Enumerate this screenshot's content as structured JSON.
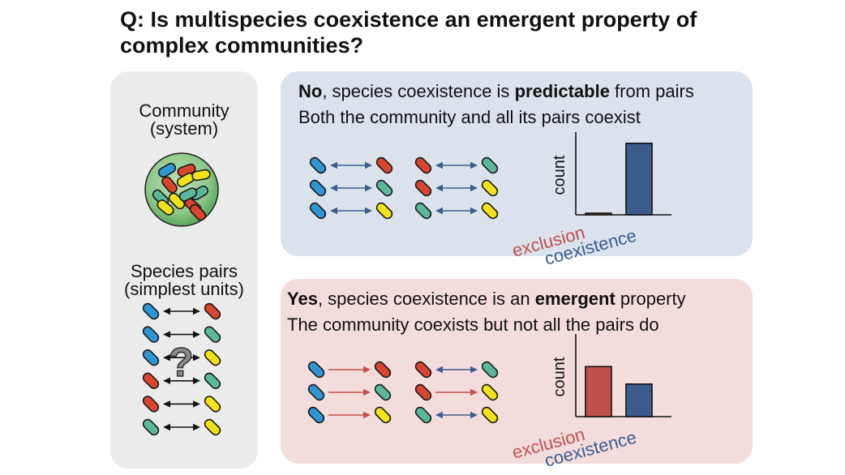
{
  "title": {
    "line1": "Q: Is multispecies coexistence an emergent property of",
    "line2": "complex communities?"
  },
  "left_panel": {
    "community_label_1": "Community",
    "community_label_2": "(system)",
    "pairs_label_1": "Species pairs",
    "pairs_label_2": "(simplest units)",
    "question_mark": "?"
  },
  "no_box": {
    "keyword": "No",
    "line1_mid": ", species coexistence is ",
    "emphasis": "predictable",
    "line1_end": " from pairs",
    "line2": "Both the community and all its pairs coexist"
  },
  "yes_box": {
    "keyword": "Yes",
    "line1_mid": ", species coexistence is an ",
    "emphasis": "emergent",
    "line1_end": " property",
    "line2": "The community coexists but not all the pairs do"
  },
  "colors": {
    "blue_species": "#2e97d3",
    "red_species": "#d9452e",
    "green_species": "#5ab89a",
    "yellow_species": "#f1e21a",
    "coexistence": "#3b5c8d",
    "exclusion": "#c0504d",
    "no_box_bg": "#dbe2ec",
    "yes_box_bg": "#f3dcdc",
    "left_panel_bg": "#ebebeb"
  },
  "chart_data": [
    {
      "type": "bar",
      "categories": [
        "exclusion",
        "coexistence"
      ],
      "values": [
        2,
        90
      ],
      "xlabel": "",
      "ylabel": "count",
      "ylim": [
        0,
        100
      ],
      "grid": false
    },
    {
      "type": "bar",
      "categories": [
        "exclusion",
        "coexistence"
      ],
      "values": [
        63,
        41
      ],
      "xlabel": "",
      "ylabel": "count",
      "ylim": [
        0,
        100
      ],
      "grid": false
    }
  ]
}
